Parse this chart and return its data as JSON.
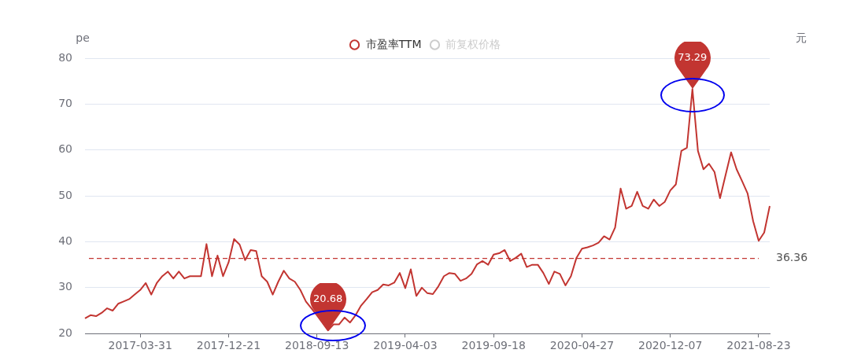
{
  "chart_data": {
    "type": "line",
    "categories": [
      null,
      null,
      null,
      null,
      null,
      null,
      null,
      null,
      null,
      null,
      "2017-03-31",
      null,
      null,
      null,
      null,
      null,
      null,
      null,
      null,
      null,
      null,
      null,
      null,
      null,
      null,
      null,
      "2017-12-21",
      null,
      null,
      null,
      null,
      null,
      null,
      null,
      null,
      null,
      null,
      null,
      null,
      null,
      null,
      null,
      "2018-09-13",
      null,
      null,
      null,
      null,
      null,
      null,
      null,
      null,
      null,
      null,
      null,
      null,
      null,
      null,
      null,
      "2019-04-03",
      null,
      null,
      null,
      null,
      null,
      null,
      null,
      null,
      null,
      null,
      null,
      null,
      null,
      null,
      null,
      "2019-09-18",
      null,
      null,
      null,
      null,
      null,
      null,
      null,
      null,
      null,
      null,
      null,
      null,
      null,
      null,
      null,
      "2020-04-27",
      null,
      null,
      null,
      null,
      null,
      null,
      null,
      null,
      null,
      null,
      null,
      null,
      null,
      null,
      null,
      "2020-12-07",
      null,
      null,
      null,
      null,
      null,
      null,
      null,
      null,
      null,
      null,
      null,
      null,
      null,
      null,
      null,
      "2021-08-23",
      null,
      null
    ],
    "series": [
      {
        "name": "市盈率TTM",
        "color": "#c23531",
        "values": [
          23.3,
          24,
          23.8,
          24.5,
          25.5,
          25,
          26.5,
          27,
          27.5,
          28.5,
          29.5,
          31,
          28.5,
          31,
          32.5,
          33.5,
          32,
          33.5,
          32,
          32.5,
          32.5,
          32.5,
          39.5,
          32.5,
          37,
          32.5,
          35.5,
          40.6,
          39.4,
          36,
          38.2,
          38,
          32.5,
          31.3,
          28.5,
          31.3,
          33.7,
          32,
          31.3,
          29.5,
          27,
          null,
          24,
          null,
          20.68,
          22,
          22,
          23.5,
          22.4,
          24,
          26.1,
          27.5,
          29,
          29.5,
          30.7,
          30.5,
          31.1,
          33.2,
          29.9,
          34,
          28.2,
          30,
          28.8,
          28.6,
          30.3,
          32.5,
          33.2,
          33,
          31.5,
          32,
          33,
          35.1,
          35.8,
          35,
          37.2,
          37.5,
          38.2,
          35.8,
          36.5,
          37.4,
          34.5,
          35,
          35,
          33.2,
          30.8,
          33.5,
          33,
          30.5,
          32.5,
          36.5,
          38.5,
          38.8,
          39.2,
          39.8,
          41.2,
          40.5,
          43.1,
          51.6,
          47.2,
          47.8,
          50.9,
          47.8,
          47.2,
          49.2,
          47.8,
          48.7,
          51.2,
          52.5,
          59.8,
          60.5,
          73.29,
          59.8,
          55.8,
          57,
          55.2,
          49.5,
          54.5,
          59.5,
          55.8,
          53.2,
          50.5,
          44.5,
          40.2,
          42,
          47.8
        ]
      },
      {
        "name": "前复权价格",
        "color": "#cccccc",
        "axis": "y2",
        "values": [
          null,
          null,
          null,
          null,
          null,
          null,
          null,
          null,
          null,
          null,
          null,
          null,
          null,
          null,
          null,
          null,
          null,
          null,
          null,
          null,
          null,
          null,
          null,
          null,
          null,
          null,
          null,
          null,
          null,
          null,
          null,
          null,
          null,
          null,
          null,
          null,
          null,
          null,
          null,
          null,
          null,
          null,
          null,
          null,
          null,
          null,
          null,
          null,
          null,
          null,
          null,
          null,
          null,
          null,
          null,
          null,
          null,
          null,
          null,
          null,
          null,
          null,
          null,
          null,
          null,
          null,
          null,
          null,
          null,
          null,
          null,
          null,
          null,
          null,
          null,
          null,
          null,
          null,
          null,
          null,
          null,
          null,
          null,
          null,
          null,
          null,
          null,
          null,
          null,
          null,
          null,
          null,
          null,
          null,
          null,
          null,
          null,
          null,
          null,
          null,
          null,
          null,
          null,
          null,
          null,
          null,
          null,
          null,
          null,
          null,
          null,
          null,
          null,
          null,
          null,
          null,
          null,
          null,
          null,
          null,
          null,
          null,
          null,
          null,
          null
        ]
      }
    ],
    "ylabel": "pe",
    "y2label": "元",
    "ylim": [
      20,
      80
    ],
    "yticks": [
      20,
      30,
      40,
      50,
      60,
      70,
      80
    ],
    "grid": "y",
    "legend": "top",
    "marker": "none",
    "line_style": "solid",
    "ref_lines": [
      {
        "axis": "y",
        "value": 36.36,
        "label": "36.36",
        "color": "#c23531",
        "line_style": "dashed"
      }
    ],
    "annotations": [
      {
        "text": "20.68",
        "y": 20.68
      },
      {
        "text": "73.29",
        "y": 73.29
      }
    ]
  }
}
